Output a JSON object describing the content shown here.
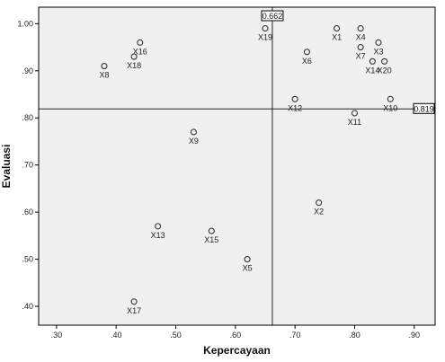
{
  "chart_data": {
    "type": "scatter",
    "xlabel": "Kepercayaan",
    "ylabel": "Evaluasi",
    "xlim": [
      0.27,
      0.935
    ],
    "ylim": [
      0.36,
      1.035
    ],
    "x_ticks": [
      0.3,
      0.4,
      0.5,
      0.6,
      0.7,
      0.8,
      0.9
    ],
    "x_tick_labels": [
      ".30",
      ".40",
      ".50",
      ".60",
      ".70",
      ".80",
      ".90"
    ],
    "y_ticks": [
      0.4,
      0.5,
      0.6,
      0.7,
      0.8,
      0.9,
      1.0
    ],
    "y_tick_labels": [
      ".40",
      ".50",
      ".60",
      ".70",
      ".80",
      ".90",
      "1.00"
    ],
    "grid": false,
    "reference_lines": [
      {
        "axis": "x",
        "value": 0.662,
        "label": "0.662"
      },
      {
        "axis": "y",
        "value": 0.819,
        "label": "0.819"
      }
    ],
    "points": [
      {
        "label": "X1",
        "x": 0.77,
        "y": 0.99
      },
      {
        "label": "X2",
        "x": 0.74,
        "y": 0.62
      },
      {
        "label": "X3",
        "x": 0.84,
        "y": 0.96
      },
      {
        "label": "X4",
        "x": 0.81,
        "y": 0.99
      },
      {
        "label": "X5",
        "x": 0.62,
        "y": 0.5
      },
      {
        "label": "X6",
        "x": 0.72,
        "y": 0.94
      },
      {
        "label": "X7",
        "x": 0.81,
        "y": 0.95
      },
      {
        "label": "X8",
        "x": 0.38,
        "y": 0.91
      },
      {
        "label": "X9",
        "x": 0.53,
        "y": 0.77
      },
      {
        "label": "X10",
        "x": 0.86,
        "y": 0.84
      },
      {
        "label": "X11",
        "x": 0.8,
        "y": 0.81
      },
      {
        "label": "X12",
        "x": 0.7,
        "y": 0.84
      },
      {
        "label": "X13",
        "x": 0.47,
        "y": 0.57
      },
      {
        "label": "X14",
        "x": 0.83,
        "y": 0.92
      },
      {
        "label": "X15",
        "x": 0.56,
        "y": 0.56
      },
      {
        "label": "X16",
        "x": 0.44,
        "y": 0.96
      },
      {
        "label": "X17",
        "x": 0.43,
        "y": 0.41
      },
      {
        "label": "X18",
        "x": 0.43,
        "y": 0.93
      },
      {
        "label": "X19",
        "x": 0.65,
        "y": 0.99
      },
      {
        "label": "X20",
        "x": 0.85,
        "y": 0.92
      }
    ]
  },
  "colors": {
    "plot_background": "#f0f0f0",
    "frame": "#000000",
    "marker": "#333333",
    "reference_line": "#222222"
  }
}
